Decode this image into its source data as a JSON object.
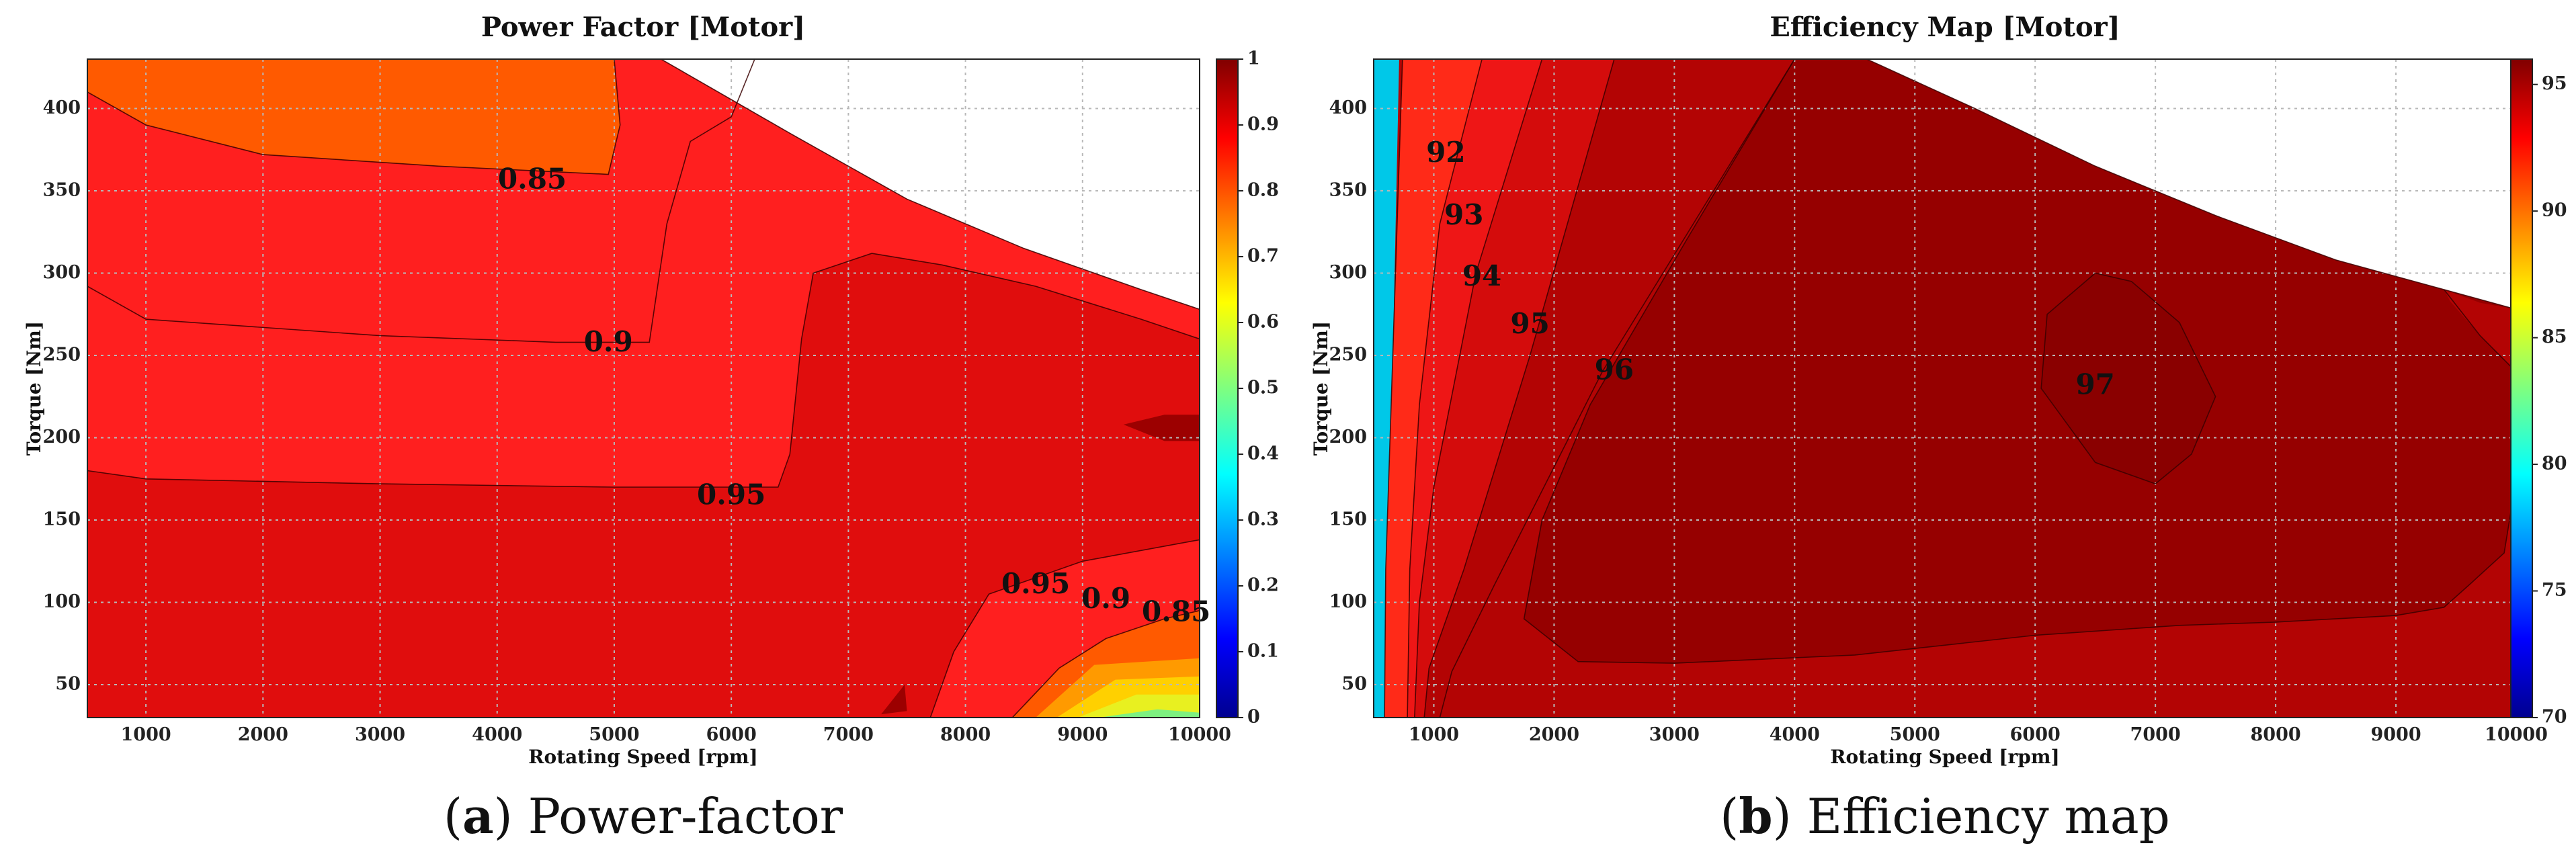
{
  "chart_data": [
    {
      "type": "heatmap",
      "subtype": "filled-contour",
      "title": "Power Factor [Motor]",
      "xlabel": "Rotating Speed [rpm]",
      "ylabel": "Torque [Nm]",
      "xlim": [
        500,
        10000
      ],
      "ylim": [
        30,
        430
      ],
      "xticks": [
        1000,
        2000,
        3000,
        4000,
        5000,
        6000,
        7000,
        8000,
        9000,
        10000
      ],
      "yticks": [
        50,
        100,
        150,
        200,
        250,
        300,
        350,
        400
      ],
      "grid": true,
      "colorbar": {
        "range": [
          0,
          1
        ],
        "ticks": [
          "0",
          "0.1",
          "0.2",
          "0.3",
          "0.4",
          "0.5",
          "0.6",
          "0.7",
          "0.8",
          "0.9",
          "1"
        ],
        "colormap": "jet"
      },
      "levels": [
        0.85,
        0.9,
        0.95,
        0.97
      ],
      "level_colors": [
        "#ff5a00",
        "#ff1f1f",
        "#e00d0d",
        "#c20000",
        "#9c0000"
      ],
      "envelope": [
        [
          500,
          430
        ],
        [
          5400,
          430
        ],
        [
          6500,
          385
        ],
        [
          7500,
          345
        ],
        [
          8500,
          315
        ],
        [
          9500,
          290
        ],
        [
          10000,
          278
        ]
      ],
      "regions": [
        {
          "level": 0,
          "points": [
            [
              500,
              430
            ],
            [
              5000,
              430
            ],
            [
              5050,
              390
            ],
            [
              4950,
              360
            ],
            [
              3500,
              365
            ],
            [
              2000,
              372
            ],
            [
              1000,
              390
            ],
            [
              500,
              410
            ]
          ]
        },
        {
          "level": 2,
          "points": [
            [
              500,
              180
            ],
            [
              1000,
              175
            ],
            [
              3000,
              172
            ],
            [
              5000,
              170
            ],
            [
              6400,
              170
            ],
            [
              6500,
              190
            ],
            [
              6600,
              260
            ],
            [
              6700,
              300
            ],
            [
              7200,
              312
            ],
            [
              7800,
              305
            ],
            [
              8600,
              292
            ],
            [
              9500,
              272
            ],
            [
              10000,
              260
            ],
            [
              10000,
              138
            ],
            [
              9000,
              125
            ],
            [
              8200,
              105
            ],
            [
              7900,
              70
            ],
            [
              7700,
              30
            ],
            [
              500,
              30
            ]
          ]
        },
        {
          "level": 1,
          "points": [
            [
              7700,
              30
            ],
            [
              7900,
              70
            ],
            [
              8200,
              105
            ],
            [
              9000,
              125
            ],
            [
              10000,
              138
            ],
            [
              10000,
              30
            ]
          ]
        },
        {
          "level": 0,
          "points": [
            [
              8400,
              30
            ],
            [
              8800,
              60
            ],
            [
              9200,
              78
            ],
            [
              9700,
              90
            ],
            [
              10000,
              95
            ],
            [
              10000,
              30
            ]
          ]
        },
        {
          "level": 4,
          "points": [
            [
              9350,
              208
            ],
            [
              9700,
              214
            ],
            [
              10000,
              214
            ],
            [
              10000,
              198
            ],
            [
              9700,
              198
            ]
          ]
        },
        {
          "level": 4,
          "points": [
            [
              7280,
              32
            ],
            [
              7480,
              50
            ],
            [
              7500,
              34
            ]
          ]
        }
      ],
      "low_band": {
        "x0": 8600,
        "colors": [
          "#ff9a00",
          "#ffd000",
          "#e8f020",
          "#7ef080",
          "#22e0d0",
          "#00c8ff"
        ]
      },
      "contour_lines": [
        [
          [
            500,
            410
          ],
          [
            1000,
            390
          ],
          [
            2000,
            372
          ],
          [
            3500,
            365
          ],
          [
            4950,
            360
          ],
          [
            5050,
            390
          ],
          [
            5000,
            430
          ]
        ],
        [
          [
            500,
            292
          ],
          [
            1000,
            272
          ],
          [
            3000,
            262
          ],
          [
            4500,
            258
          ],
          [
            5300,
            258
          ],
          [
            5450,
            330
          ],
          [
            5650,
            380
          ],
          [
            6000,
            395
          ],
          [
            6200,
            430
          ]
        ],
        [
          [
            500,
            180
          ],
          [
            1000,
            175
          ],
          [
            3000,
            172
          ],
          [
            5000,
            170
          ],
          [
            6400,
            170
          ],
          [
            6500,
            190
          ],
          [
            6600,
            260
          ],
          [
            6700,
            300
          ],
          [
            7200,
            312
          ],
          [
            7800,
            305
          ],
          [
            8600,
            292
          ],
          [
            9500,
            272
          ],
          [
            10000,
            260
          ]
        ],
        [
          [
            7700,
            30
          ],
          [
            7900,
            70
          ],
          [
            8200,
            105
          ],
          [
            9000,
            125
          ],
          [
            10000,
            138
          ]
        ],
        [
          [
            8400,
            30
          ],
          [
            8800,
            60
          ],
          [
            9200,
            78
          ],
          [
            9700,
            90
          ],
          [
            10000,
            95
          ]
        ]
      ],
      "labels": [
        {
          "text": "0.85",
          "x": 4300,
          "y": 356
        },
        {
          "text": "0.9",
          "x": 4950,
          "y": 257
        },
        {
          "text": "0.95",
          "x": 6000,
          "y": 164
        },
        {
          "text": "0.95",
          "x": 8600,
          "y": 110
        },
        {
          "text": "0.9",
          "x": 9200,
          "y": 101
        },
        {
          "text": "0.85",
          "x": 9800,
          "y": 93
        }
      ]
    },
    {
      "type": "heatmap",
      "subtype": "filled-contour",
      "title": "Efficiency Map [Motor]",
      "xlabel": "Rotating Speed [rpm]",
      "ylabel": "Torque [Nm]",
      "xlim": [
        500,
        10000
      ],
      "ylim": [
        30,
        430
      ],
      "xticks": [
        1000,
        2000,
        3000,
        4000,
        5000,
        6000,
        7000,
        8000,
        9000,
        10000
      ],
      "yticks": [
        50,
        100,
        150,
        200,
        250,
        300,
        350,
        400
      ],
      "grid": true,
      "colorbar": {
        "range": [
          70,
          96
        ],
        "ticks": [
          "70",
          "75",
          "80",
          "85",
          "90",
          "95"
        ],
        "colormap": "jet"
      },
      "levels": [
        92,
        93,
        94,
        95,
        96,
        97
      ],
      "level_colors": [
        "#ff3a10",
        "#ff2a18",
        "#ee1616",
        "#d40c0c",
        "#b30404",
        "#960000",
        "#8a0000"
      ],
      "envelope": [
        [
          500,
          430
        ],
        [
          4600,
          430
        ],
        [
          5500,
          400
        ],
        [
          6500,
          365
        ],
        [
          7500,
          335
        ],
        [
          8500,
          308
        ],
        [
          9500,
          288
        ],
        [
          10000,
          278
        ]
      ],
      "regions": [
        {
          "level": 1,
          "points": [
            [
              740,
              430
            ],
            [
              1400,
              430
            ],
            [
              1050,
              330
            ],
            [
              880,
              220
            ],
            [
              800,
              120
            ],
            [
              780,
              30
            ],
            [
              590,
              30
            ],
            [
              600,
              120
            ],
            [
              650,
              230
            ]
          ]
        },
        {
          "level": 2,
          "points": [
            [
              1400,
              430
            ],
            [
              1900,
              430
            ],
            [
              1350,
              300
            ],
            [
              1000,
              170
            ],
            [
              880,
              100
            ],
            [
              840,
              30
            ],
            [
              780,
              30
            ],
            [
              800,
              120
            ],
            [
              880,
              220
            ],
            [
              1050,
              330
            ]
          ]
        },
        {
          "level": 3,
          "points": [
            [
              1900,
              430
            ],
            [
              2500,
              430
            ],
            [
              1800,
              250
            ],
            [
              1250,
              120
            ],
            [
              960,
              60
            ],
            [
              920,
              30
            ],
            [
              840,
              30
            ],
            [
              880,
              100
            ],
            [
              1000,
              170
            ],
            [
              1350,
              300
            ]
          ]
        },
        {
          "level": 4,
          "points": [
            [
              2500,
              430
            ],
            [
              4000,
              430
            ],
            [
              2400,
              240
            ],
            [
              1500,
              110
            ],
            [
              1150,
              58
            ],
            [
              1050,
              30
            ],
            [
              920,
              30
            ],
            [
              960,
              60
            ],
            [
              1250,
              120
            ],
            [
              1800,
              250
            ]
          ]
        },
        {
          "level": 5,
          "points": [
            [
              4000,
              430
            ],
            [
              4600,
              430
            ],
            [
              5500,
              400
            ],
            [
              6500,
              365
            ],
            [
              7500,
              335
            ],
            [
              8500,
              308
            ],
            [
              9500,
              288
            ],
            [
              10000,
              278
            ],
            [
              10000,
              175
            ],
            [
              9900,
              130
            ],
            [
              9600,
              110
            ],
            [
              9400,
              97
            ],
            [
              9000,
              92
            ],
            [
              8000,
              88
            ],
            [
              7200,
              86
            ],
            [
              6000,
              80
            ],
            [
              4500,
              68
            ],
            [
              3000,
              63
            ],
            [
              2200,
              64
            ],
            [
              1750,
              90
            ],
            [
              1900,
              150
            ],
            [
              2300,
              220
            ],
            [
              3100,
              320
            ]
          ]
        },
        {
          "level": 6,
          "points": [
            [
              6500,
              300
            ],
            [
              6800,
              295
            ],
            [
              7200,
              270
            ],
            [
              7500,
              225
            ],
            [
              7300,
              190
            ],
            [
              7000,
              172
            ],
            [
              6500,
              185
            ],
            [
              6050,
              230
            ],
            [
              6100,
              275
            ]
          ]
        },
        {
          "level": 4,
          "points": [
            [
              9400,
              290
            ],
            [
              9700,
              282
            ],
            [
              10000,
              278
            ],
            [
              10000,
              240
            ],
            [
              9700,
              262
            ],
            [
              9450,
              283
            ]
          ]
        }
      ],
      "left_band": {
        "colors": [
          "#ffb000",
          "#ffe000",
          "#c8f040",
          "#40e0a0",
          "#00c8e8"
        ]
      },
      "contour_lines": [
        [
          [
            740,
            430
          ],
          [
            650,
            230
          ],
          [
            600,
            120
          ],
          [
            590,
            30
          ]
        ],
        [
          [
            1400,
            430
          ],
          [
            1050,
            330
          ],
          [
            880,
            220
          ],
          [
            800,
            120
          ],
          [
            780,
            30
          ]
        ],
        [
          [
            1900,
            430
          ],
          [
            1350,
            300
          ],
          [
            1000,
            170
          ],
          [
            880,
            100
          ],
          [
            840,
            30
          ]
        ],
        [
          [
            2500,
            430
          ],
          [
            1800,
            250
          ],
          [
            1250,
            120
          ],
          [
            960,
            60
          ],
          [
            920,
            30
          ]
        ],
        [
          [
            4000,
            430
          ],
          [
            3100,
            320
          ],
          [
            2300,
            220
          ],
          [
            1900,
            150
          ],
          [
            1750,
            90
          ],
          [
            2200,
            64
          ],
          [
            3000,
            63
          ],
          [
            4500,
            68
          ],
          [
            6000,
            80
          ],
          [
            7200,
            86
          ],
          [
            8000,
            88
          ],
          [
            9000,
            92
          ],
          [
            9400,
            97
          ],
          [
            9600,
            110
          ],
          [
            9900,
            130
          ],
          [
            10000,
            175
          ]
        ],
        [
          [
            6500,
            300
          ],
          [
            6800,
            295
          ],
          [
            7200,
            270
          ],
          [
            7500,
            225
          ],
          [
            7300,
            190
          ],
          [
            7000,
            172
          ],
          [
            6500,
            185
          ],
          [
            6050,
            230
          ],
          [
            6100,
            275
          ],
          [
            6500,
            300
          ]
        ],
        [
          [
            1050,
            30
          ],
          [
            1150,
            58
          ],
          [
            1500,
            110
          ],
          [
            2400,
            240
          ],
          [
            4000,
            430
          ]
        ],
        [
          [
            9400,
            290
          ],
          [
            9700,
            262
          ],
          [
            10000,
            240
          ]
        ]
      ],
      "labels": [
        {
          "text": "92",
          "x": 1100,
          "y": 372
        },
        {
          "text": "93",
          "x": 1250,
          "y": 334
        },
        {
          "text": "94",
          "x": 1400,
          "y": 297
        },
        {
          "text": "95",
          "x": 1800,
          "y": 268
        },
        {
          "text": "96",
          "x": 2500,
          "y": 240
        },
        {
          "text": "97",
          "x": 6500,
          "y": 231
        }
      ]
    }
  ],
  "captions": [
    {
      "letter": "a",
      "text": "Power-factor"
    },
    {
      "letter": "b",
      "text": "Efficiency map"
    }
  ]
}
